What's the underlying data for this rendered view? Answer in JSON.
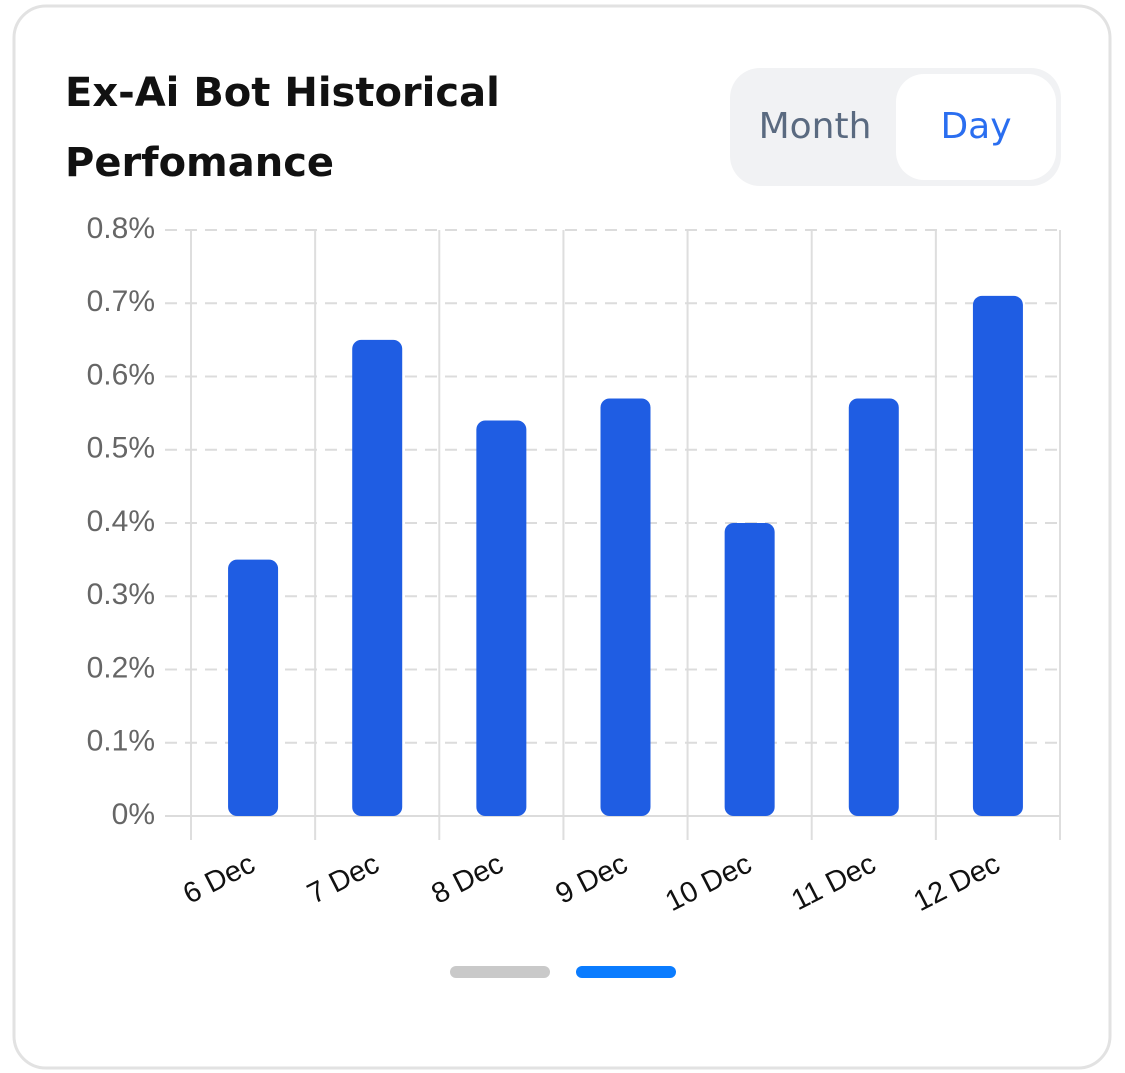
{
  "chart_data": {
    "type": "bar",
    "title": "Ex-Ai Bot Historical Perfomance",
    "categories": [
      "6 Dec",
      "7 Dec",
      "8 Dec",
      "9 Dec",
      "10 Dec",
      "11 Dec",
      "12 Dec"
    ],
    "values": [
      0.35,
      0.65,
      0.54,
      0.57,
      0.4,
      0.57,
      0.71
    ],
    "color": "#1f5de3",
    "ylim": [
      0,
      0.8
    ],
    "yticks": [
      {
        "value": 0,
        "label": "0%"
      },
      {
        "value": 0.1,
        "label": "0.1%"
      },
      {
        "value": 0.2,
        "label": "0.2%"
      },
      {
        "value": 0.3,
        "label": "0.3%"
      },
      {
        "value": 0.4,
        "label": "0.4%"
      },
      {
        "value": 0.5,
        "label": "0.5%"
      },
      {
        "value": 0.6,
        "label": "0.6%"
      },
      {
        "value": 0.7,
        "label": "0.7%"
      },
      {
        "value": 0.8,
        "label": "0.8%"
      }
    ],
    "grid": true
  },
  "controls": {
    "period_options": [
      "Month",
      "Day"
    ],
    "selected": "Day"
  }
}
